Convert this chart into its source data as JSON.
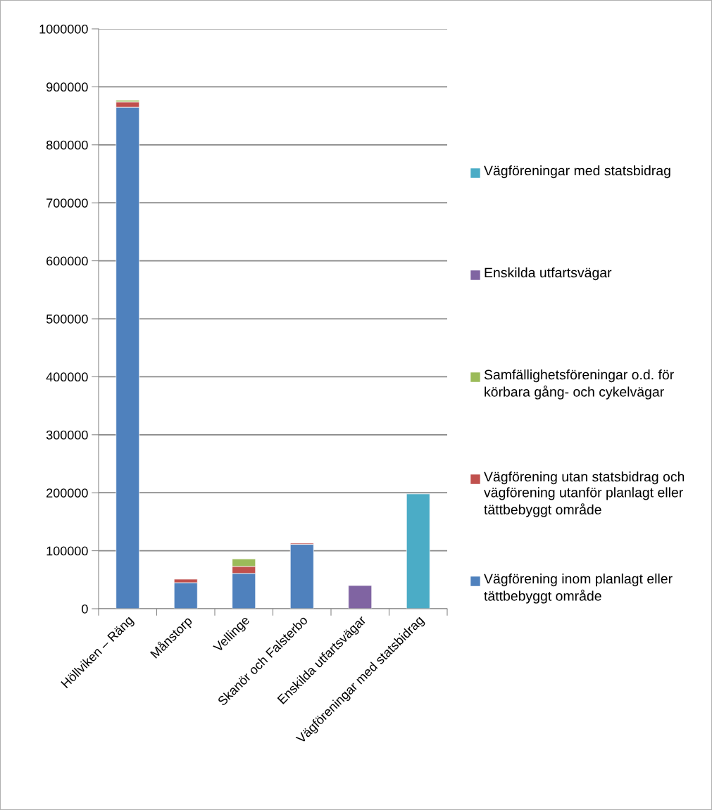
{
  "chart_data": {
    "type": "bar",
    "stacked": true,
    "categories": [
      "Höllviken – Räng",
      "Månstorp",
      "Vellinge",
      "Skanör och Falsterbo",
      "Enskilda utfartsvägar",
      "Vägföreningar med statsbidrag"
    ],
    "series": [
      {
        "name": "Vägförening inom planlagt eller tättbebyggt område",
        "color": "#4f81bd",
        "values": [
          865000,
          45000,
          61000,
          111000,
          null,
          null
        ]
      },
      {
        "name": "Vägförening utan statsbidrag och vägförening utanför planlagt eller tättbebyggt område",
        "color": "#c0504d",
        "values": [
          9000,
          6000,
          12000,
          2000,
          null,
          null
        ]
      },
      {
        "name": "Samfällighetsföreningar o.d. för körbara gång- och cykelvägar",
        "color": "#9bbb59",
        "values": [
          3000,
          null,
          13000,
          null,
          null,
          null
        ]
      },
      {
        "name": "Enskilda utfartsvägar",
        "color": "#8064a2",
        "values": [
          null,
          null,
          null,
          null,
          40000,
          null
        ]
      },
      {
        "name": "Vägföreningar med statsbidrag",
        "color": "#4bacc6",
        "values": [
          null,
          null,
          null,
          null,
          null,
          198000
        ]
      }
    ],
    "ylim": [
      0,
      1000000
    ],
    "yticks": [
      0,
      100000,
      200000,
      300000,
      400000,
      500000,
      600000,
      700000,
      800000,
      900000,
      1000000
    ],
    "grid": "y",
    "legend": "right"
  }
}
